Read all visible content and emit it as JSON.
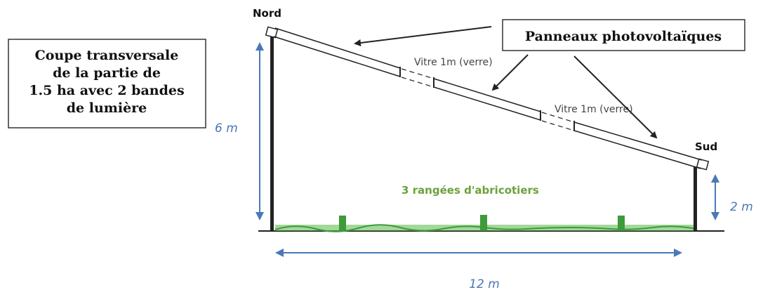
{
  "caption": {
    "lines": [
      "Coupe transversale",
      "de la partie de",
      "1.5 ha avec 2 bandes",
      "de lumière"
    ]
  },
  "labels": {
    "panels": "Panneaux photovoltaïques",
    "north": "Nord",
    "south": "Sud",
    "glass_1": "Vitre 1m (verre)",
    "glass_2": "Vitre 1m (verre)",
    "trees": "3 rangées d'abricotiers",
    "height_left": "6 m",
    "height_right": "2 m",
    "width": "12 m"
  },
  "colors": {
    "structure": "#222222",
    "dimension": "#4a78b8",
    "trees": "#6aa23a",
    "grass": "#58b848",
    "trunk": "#3e9a3a"
  }
}
